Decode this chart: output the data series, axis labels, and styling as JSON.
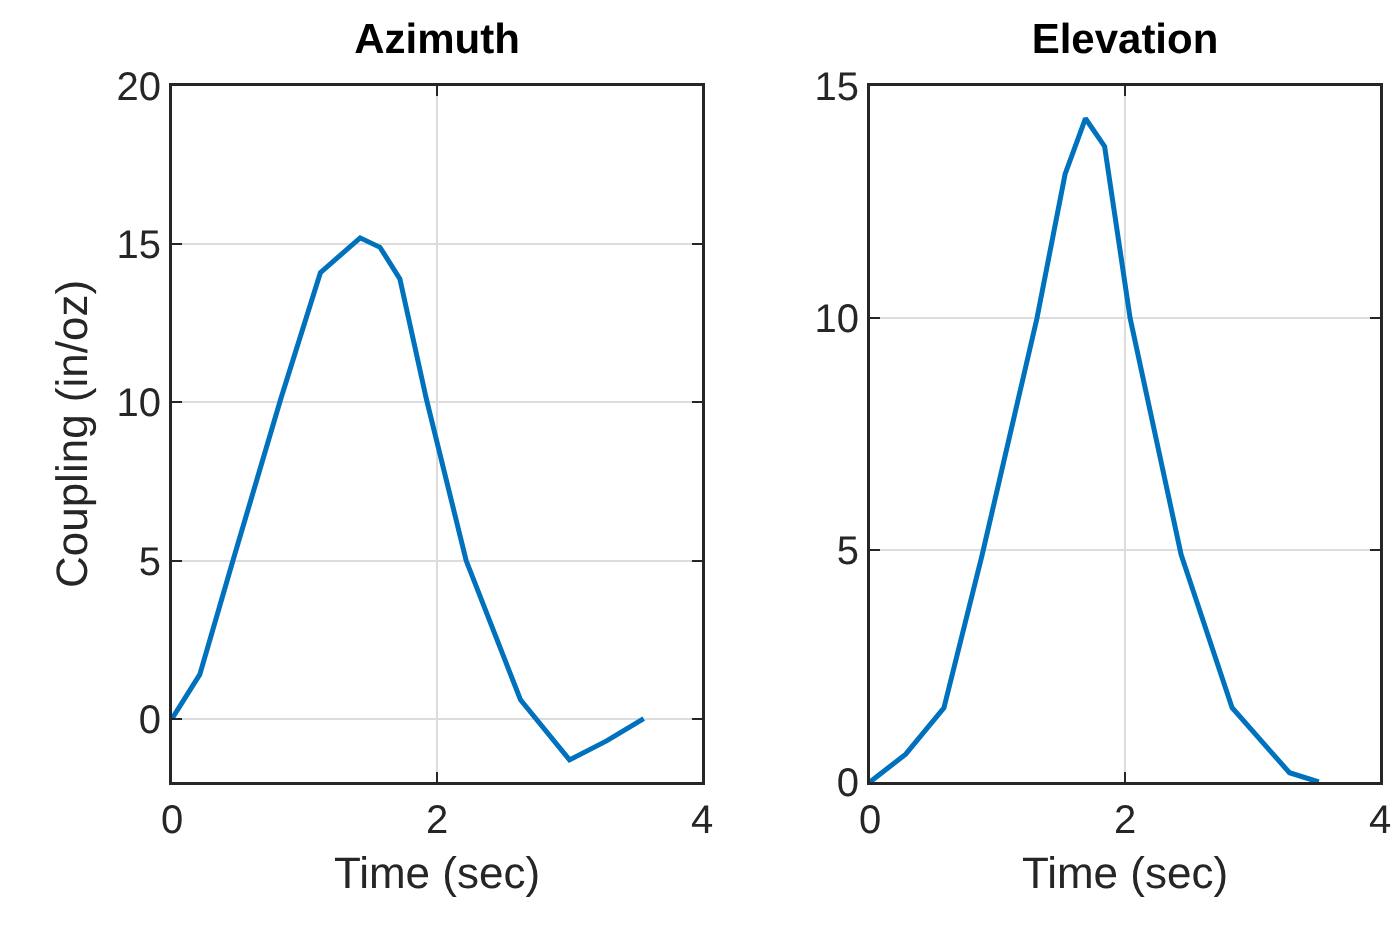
{
  "chart_data": [
    {
      "type": "line",
      "title": "Azimuth",
      "xlabel": "Time (sec)",
      "ylabel": "Coupling (in/oz)",
      "xlim": [
        0,
        4
      ],
      "xticks": [
        0,
        2,
        4
      ],
      "ylim": [
        -2,
        20
      ],
      "yticks": [
        0,
        5,
        10,
        15,
        20
      ],
      "grid": true,
      "series": [
        {
          "color": "#0072bd",
          "x": [
            0,
            0.21,
            0.46,
            0.82,
            1.12,
            1.42,
            1.57,
            1.72,
            1.92,
            2.22,
            2.63,
            3.0,
            3.28,
            3.56
          ],
          "values": [
            0,
            1.4,
            5.0,
            10.1,
            14.1,
            15.2,
            14.9,
            13.9,
            10.1,
            5.0,
            0.6,
            -1.3,
            -0.7,
            0
          ]
        }
      ]
    },
    {
      "type": "line",
      "title": "Elevation",
      "xlabel": "Time (sec)",
      "xlim": [
        0,
        4
      ],
      "xticks": [
        0,
        2,
        4
      ],
      "ylim": [
        0,
        15
      ],
      "yticks": [
        0,
        5,
        10,
        15
      ],
      "grid": true,
      "series": [
        {
          "color": "#0072bd",
          "x": [
            0,
            0.28,
            0.58,
            0.88,
            1.31,
            1.53,
            1.69,
            1.84,
            2.04,
            2.44,
            2.84,
            3.29,
            3.52
          ],
          "values": [
            0,
            0.6,
            1.6,
            4.9,
            10.0,
            13.1,
            14.3,
            13.7,
            10.0,
            4.9,
            1.6,
            0.2,
            0
          ]
        }
      ]
    }
  ]
}
